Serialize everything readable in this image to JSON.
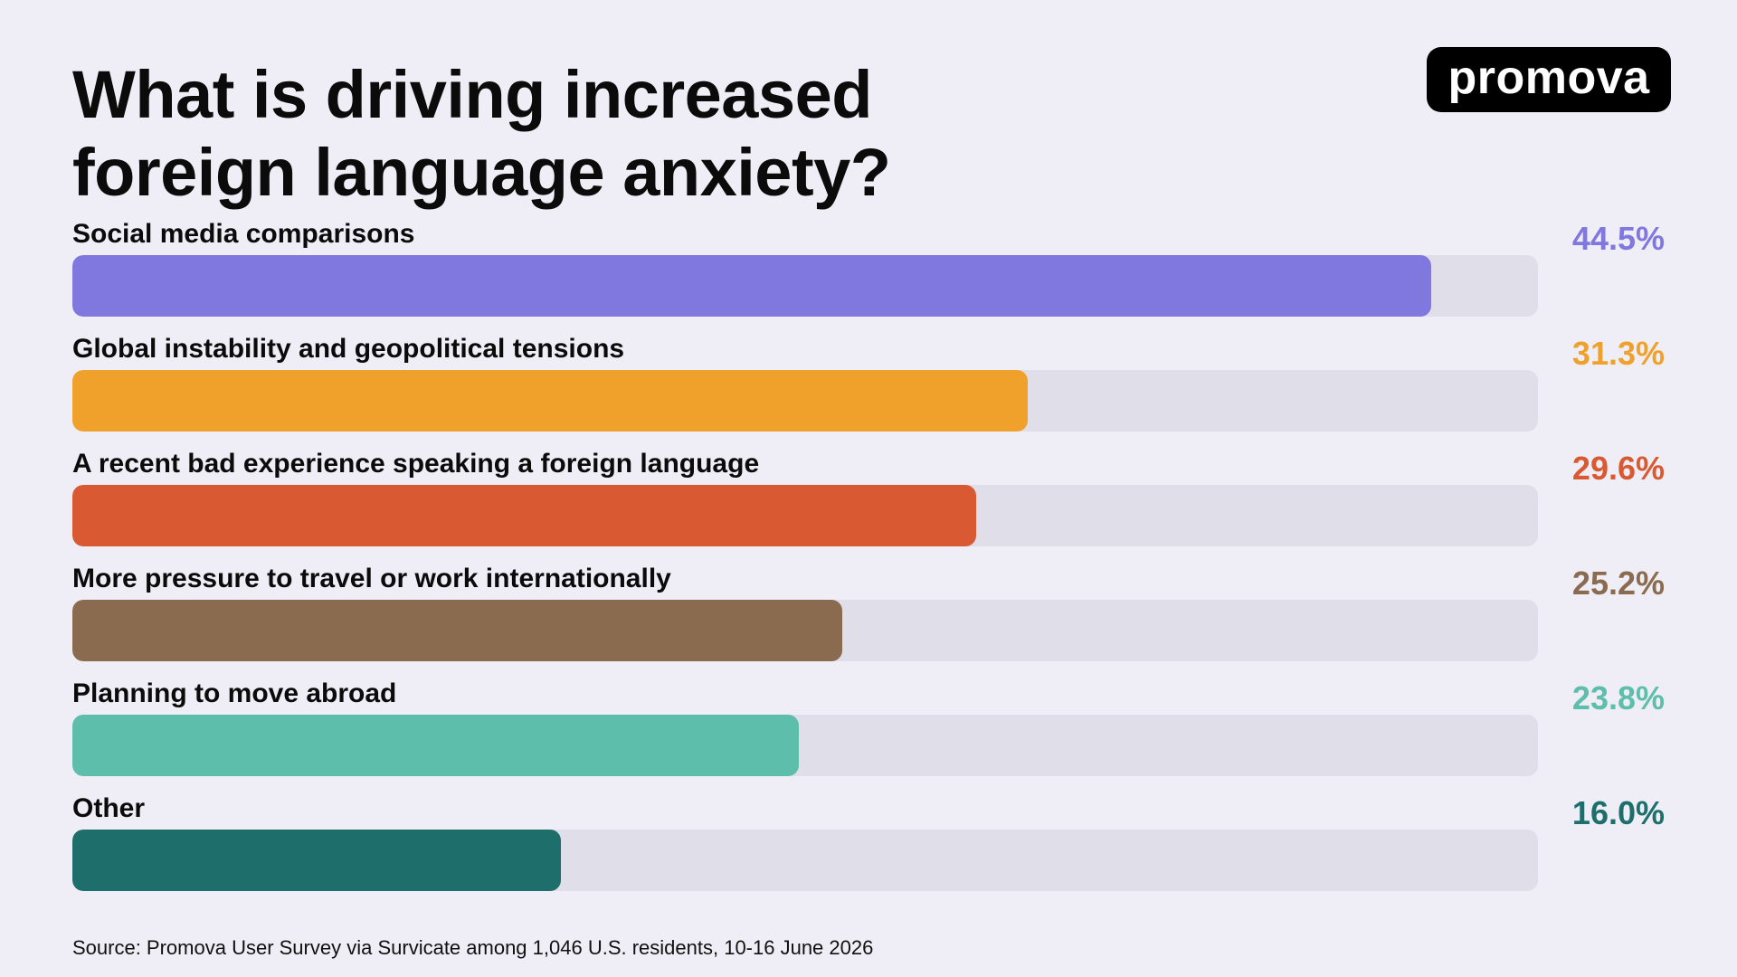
{
  "chart_data": {
    "type": "bar",
    "orientation": "horizontal",
    "title": [
      "What is driving increased",
      "foreign language anxiety?"
    ],
    "categories": [
      "Social media comparisons",
      "Global instability and geopolitical tensions",
      "A recent bad experience speaking a foreign language",
      "More pressure to travel or work internationally",
      "Planning to move abroad",
      "Other"
    ],
    "values": [
      44.5,
      31.3,
      29.6,
      25.2,
      23.8,
      16.0
    ],
    "value_labels": [
      "44.5%",
      "31.3%",
      "29.6%",
      "25.2%",
      "23.8%",
      "16.0%"
    ],
    "colors": [
      "#8078df",
      "#efa12b",
      "#d95a32",
      "#8a6b50",
      "#5dbfab",
      "#1e6e6c"
    ],
    "xlim": [
      0,
      48
    ],
    "grid": false,
    "legend": "none"
  },
  "brand": {
    "logo_text": "promova"
  },
  "source": "Source: Promova User Survey via Survicate among 1,046 U.S. residents, 10-16 June 2026"
}
